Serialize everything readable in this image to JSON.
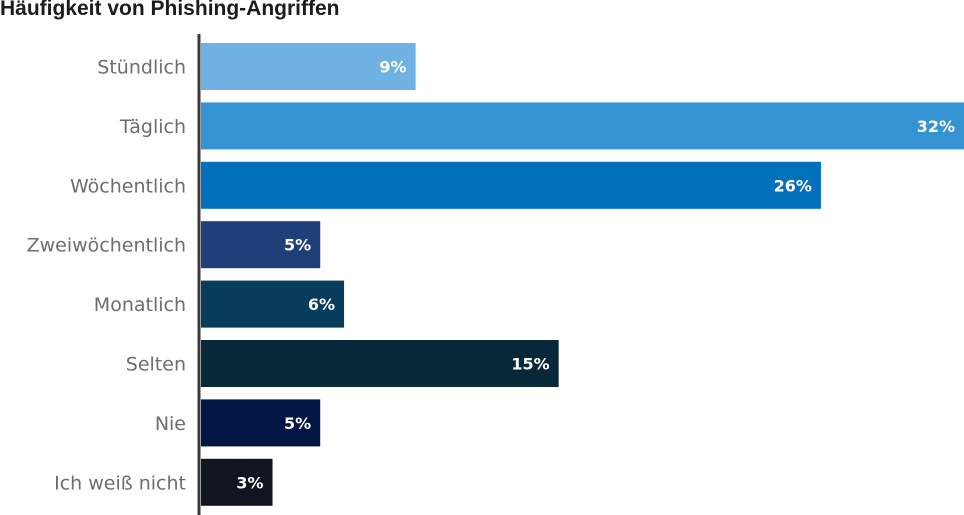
{
  "chart_data": {
    "type": "bar",
    "orientation": "horizontal",
    "title": "Häufigkeit von Phishing-Angriffen",
    "categories": [
      "Stündlich",
      "Täglich",
      "Wöchentlich",
      "Zweiwöchentlich",
      "Monatlich",
      "Selten",
      "Nie",
      "Ich weiß nicht"
    ],
    "values": [
      9,
      32,
      26,
      5,
      6,
      15,
      5,
      3
    ],
    "value_labels": [
      "9%",
      "32%",
      "26%",
      "5%",
      "6%",
      "15%",
      "5%",
      "3%"
    ],
    "colors": [
      "#6fb1e2",
      "#3592d3",
      "#0370bd",
      "#1e3f77",
      "#073c5b",
      "#062839",
      "#031542",
      "#11151f"
    ],
    "xlim": [
      0,
      32
    ],
    "grid": false,
    "legend": "none"
  }
}
